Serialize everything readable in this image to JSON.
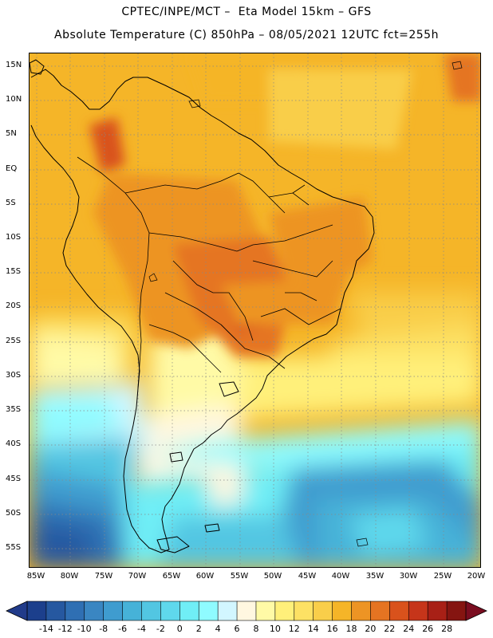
{
  "header": {
    "line1": "CPTEC/INPE/MCT –  Eta Model 15km – GFS",
    "line2": "Absolute Temperature (C) 850hPa – 08/05/2021 12UTC fct=255h"
  },
  "map": {
    "lat_labels": [
      "15N",
      "10N",
      "5N",
      "EQ",
      "5S",
      "10S",
      "15S",
      "20S",
      "25S",
      "30S",
      "35S",
      "40S",
      "45S",
      "50S",
      "55S"
    ],
    "lon_labels": [
      "85W",
      "80W",
      "75W",
      "70W",
      "65W",
      "60W",
      "55W",
      "50W",
      "45W",
      "40W",
      "35W",
      "30W",
      "25W",
      "20W"
    ]
  },
  "colorbar": {
    "labels": [
      "-14",
      "-12",
      "-10",
      "-8",
      "-6",
      "-4",
      "-2",
      "0",
      "2",
      "4",
      "6",
      "8",
      "10",
      "12",
      "14",
      "16",
      "18",
      "20",
      "22",
      "24",
      "26",
      "28"
    ],
    "colors": [
      "#1c3f8c",
      "#2658a0",
      "#2f6fb3",
      "#3a86c2",
      "#3f9ccf",
      "#46b2d8",
      "#52c6e2",
      "#5fd8ec",
      "#70eef6",
      "#8ffbff",
      "#d2f6ff",
      "#fff7e0",
      "#fffaa6",
      "#fff07a",
      "#fde164",
      "#f9ce4a",
      "#f5b528",
      "#ed9424",
      "#e57422",
      "#d9521c",
      "#c6351a",
      "#a82016",
      "#851511"
    ],
    "low_color": "#213b8a",
    "high_color": "#7a0d20"
  }
}
